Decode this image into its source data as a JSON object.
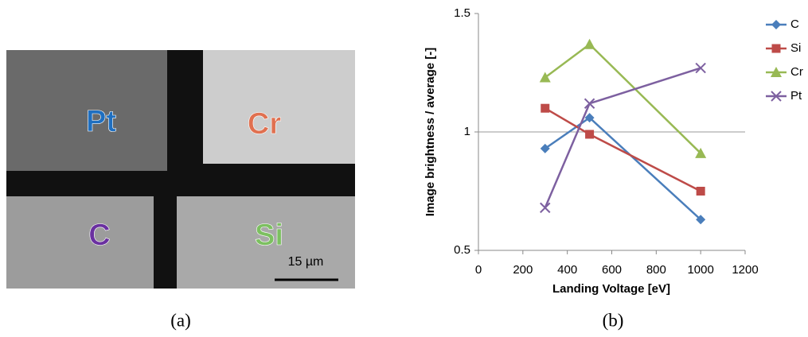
{
  "image_panel": {
    "labels": [
      "Pt",
      "Cr",
      "C",
      "Si"
    ],
    "scale_bar": "15 µm",
    "caption": "(a)"
  },
  "chart_caption": "(b)",
  "chart_data": {
    "type": "line",
    "x_label": "Landing Voltage [eV]",
    "y_label": "Image brightness / average [-]",
    "xlim": [
      0,
      1200
    ],
    "xticks": [
      0,
      200,
      400,
      600,
      800,
      1000,
      1200
    ],
    "ylim": [
      0.5,
      1.5
    ],
    "yticks": [
      0.5,
      1,
      1.5
    ],
    "reference_line": 1,
    "x": [
      300,
      500,
      1000
    ],
    "legend": "right",
    "series": [
      {
        "name": "C",
        "color": "#4a7ebb",
        "marker": "diamond",
        "values": [
          0.93,
          1.06,
          0.63
        ]
      },
      {
        "name": "Si",
        "color": "#be4b48",
        "marker": "square",
        "values": [
          1.1,
          0.99,
          0.75
        ]
      },
      {
        "name": "Cr",
        "color": "#98b954",
        "marker": "triangle",
        "values": [
          1.23,
          1.37,
          0.91
        ]
      },
      {
        "name": "Pt",
        "color": "#7d60a0",
        "marker": "x",
        "values": [
          0.68,
          1.12,
          1.27
        ]
      }
    ]
  }
}
